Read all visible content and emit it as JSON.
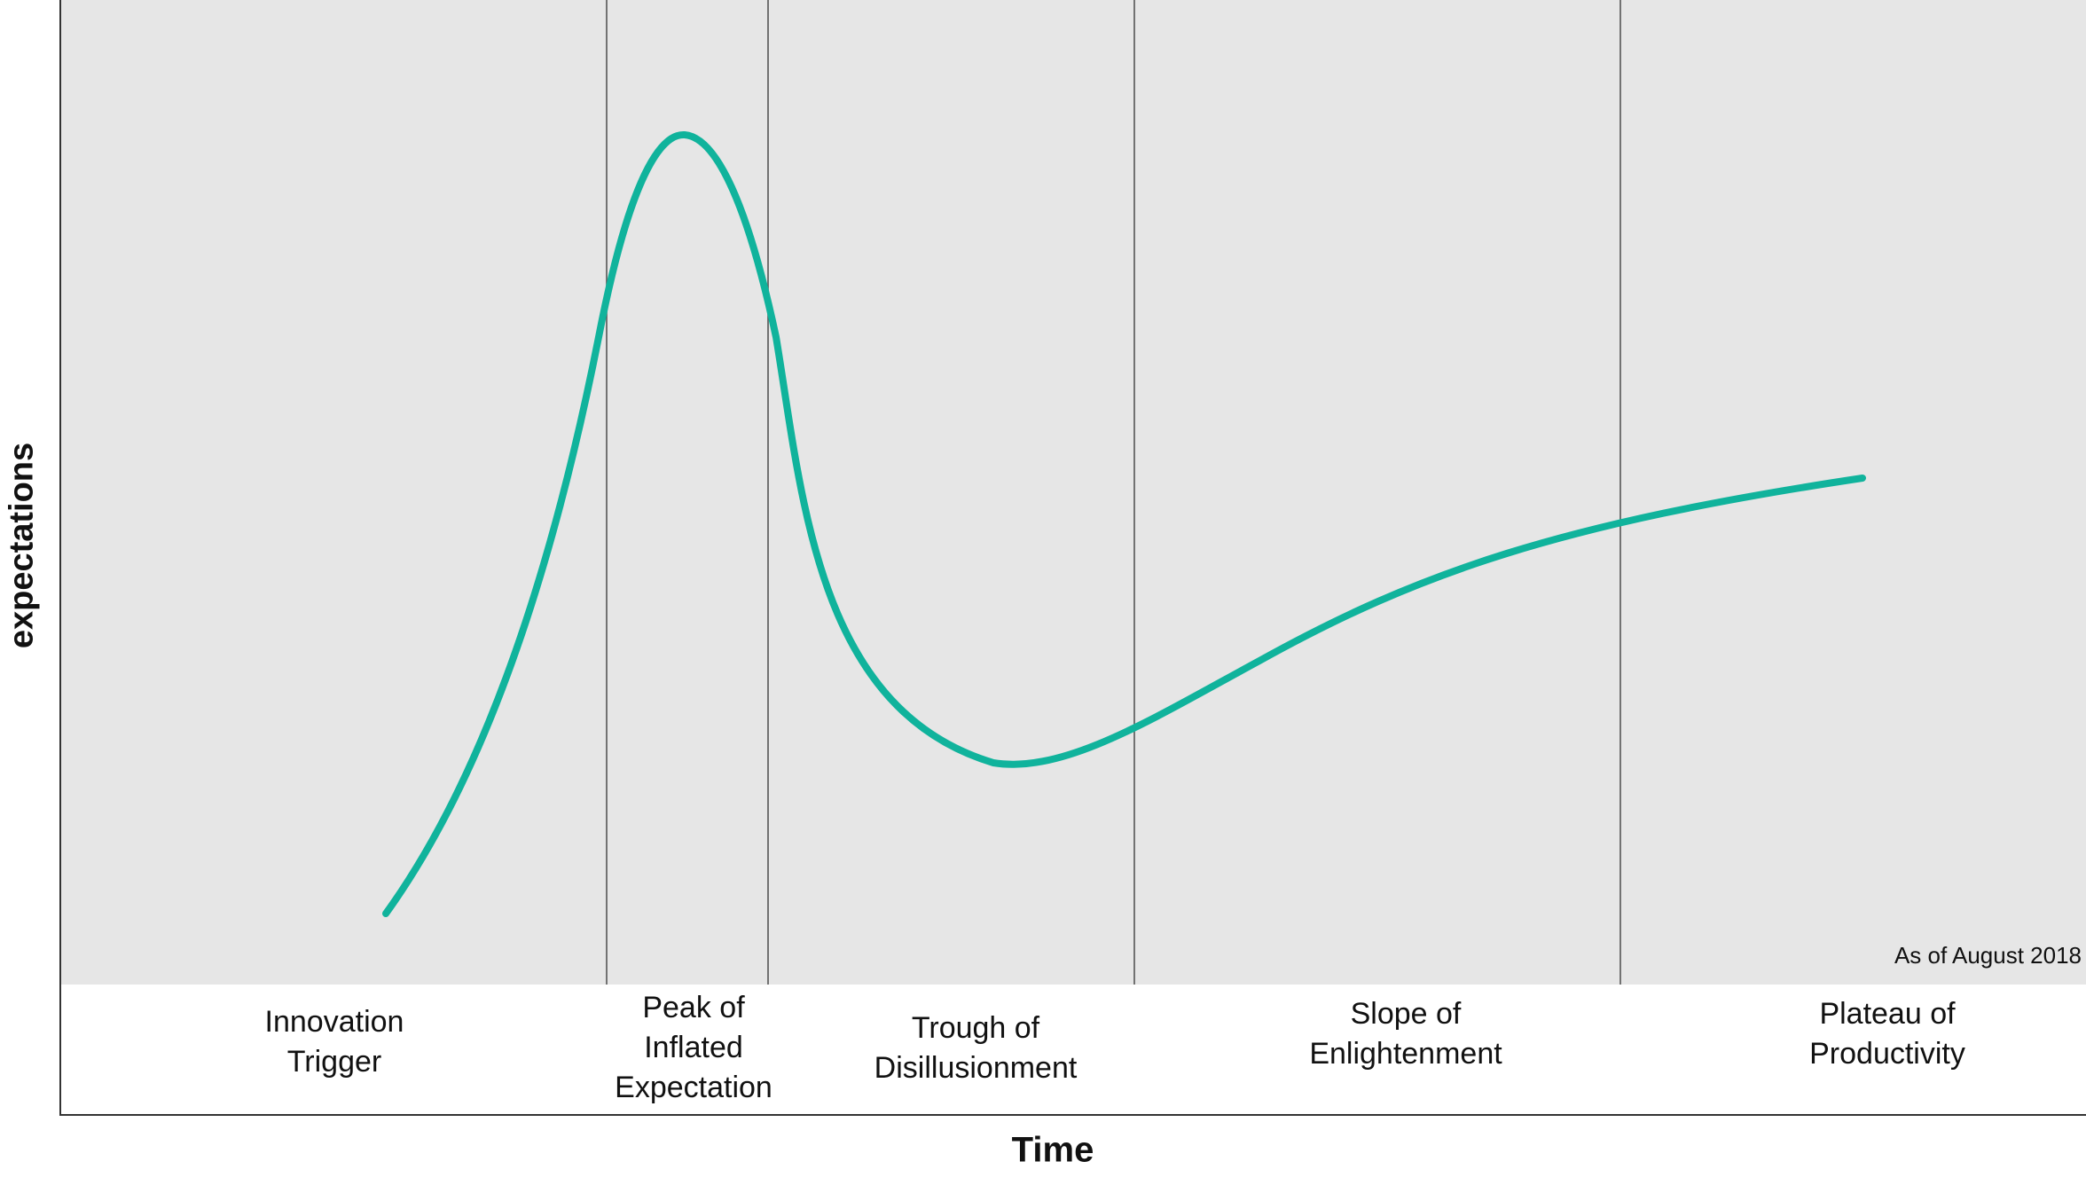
{
  "axes": {
    "y_label": "expectations",
    "x_label": "Time"
  },
  "annotation": "As of August 2018",
  "phases": [
    {
      "id": "innovation-trigger",
      "lines": [
        "Innovation",
        "Trigger"
      ]
    },
    {
      "id": "peak",
      "lines": [
        "Peak of",
        "Inflated",
        "Expectation"
      ]
    },
    {
      "id": "trough",
      "lines": [
        "Trough of",
        "Disillusionment"
      ]
    },
    {
      "id": "slope",
      "lines": [
        "Slope of",
        "Enlightenment"
      ]
    },
    {
      "id": "plateau",
      "lines": [
        "Plateau of",
        "Productivity"
      ]
    }
  ],
  "colors": {
    "curve": "#10b39c",
    "plot_background": "#e6e6e6",
    "divider": "#555555"
  }
}
